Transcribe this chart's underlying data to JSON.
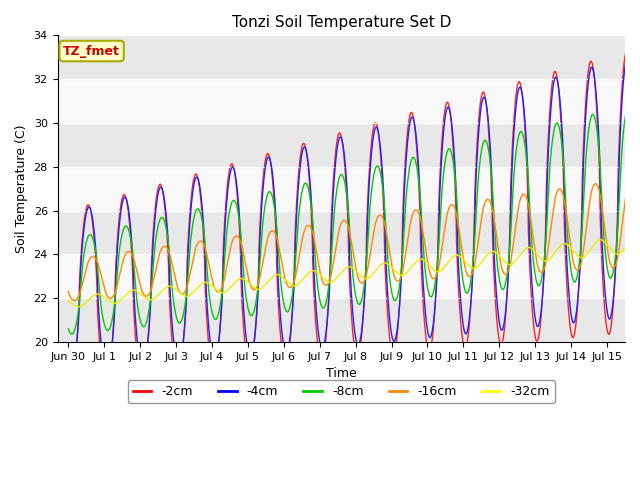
{
  "title": "Tonzi Soil Temperature Set D",
  "xlabel": "Time",
  "ylabel": "Soil Temperature (C)",
  "ylim": [
    20,
    34
  ],
  "xlim": [
    -0.3,
    15.5
  ],
  "annotation_text": "TZ_fmet",
  "annotation_bg": "#ffffcc",
  "annotation_border": "#aaaa00",
  "annotation_fg": "#cc0000",
  "bg_color": "#ffffff",
  "plot_bg": "#ffffff",
  "legend_labels": [
    "-2cm",
    "-4cm",
    "-8cm",
    "-16cm",
    "-32cm"
  ],
  "legend_colors": [
    "#ff0000",
    "#0000ff",
    "#00cc00",
    "#ff8800",
    "#ffff00"
  ],
  "line_colors": [
    "#ff2222",
    "#2222ff",
    "#00cc00",
    "#ff8800",
    "#eeee00"
  ],
  "xtick_labels": [
    "Jun 30",
    "Jul 1",
    "Jul 2",
    "Jul 3",
    "Jul 4",
    "Jul 5",
    "Jul 6",
    "Jul 7",
    "Jul 8",
    "Jul 9",
    "Jul 10",
    "Jul 11",
    "Jul 12",
    "Jul 13",
    "Jul 14",
    "Jul 15"
  ],
  "xtick_positions": [
    0,
    1,
    2,
    3,
    4,
    5,
    6,
    7,
    8,
    9,
    10,
    11,
    12,
    13,
    14,
    15
  ],
  "band_colors": [
    "#e8e8e8",
    "#f8f8f8"
  ],
  "ytick_positions": [
    20,
    22,
    24,
    26,
    28,
    30,
    32,
    34
  ]
}
